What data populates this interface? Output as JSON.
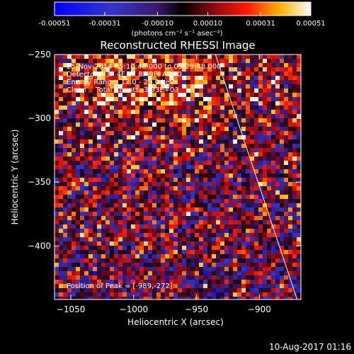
{
  "colorbar": {
    "ticks": [
      "-0.00051",
      "-0.00031",
      "-0.00010",
      "0.00010",
      "0.00031",
      "0.00051"
    ],
    "units_label": "(photons cm⁻² s⁻¹ asec⁻²)"
  },
  "chart_data": {
    "type": "heatmap",
    "title": "Reconstructed RHESSI Image",
    "xlabel": "Heliocentric X (arcsec)",
    "ylabel": "Heliocentric Y (arcsec)",
    "xlim": [
      -1063,
      -867
    ],
    "ylim": [
      -442,
      -250
    ],
    "x_ticks": [
      "-1050",
      "-1000",
      "-950",
      "-900"
    ],
    "y_ticks": [
      "-250",
      "-300",
      "-350",
      "-400"
    ],
    "value_range": [
      -0.00051,
      0.00051
    ],
    "annotations": {
      "time_range": "25-Nov-2014 05:10:48.000 to 05:29:48.000",
      "detectors": "Detectors: 3F 4F 5F 8F 9F; Att: 0",
      "energy_range": "Energy Range: 12.0 - 25.0 keV",
      "clean_counts": "Clean    Total Counts: 3.93E+03",
      "peak": "Position of Peak = [-989,-272]"
    },
    "limb_line": {
      "start": [
        -935,
        -250
      ],
      "end": [
        -870,
        -442
      ]
    },
    "peak_position": [
      -989,
      -272
    ]
  },
  "footer": {
    "timestamp": "10-Aug-2017 01:16"
  }
}
